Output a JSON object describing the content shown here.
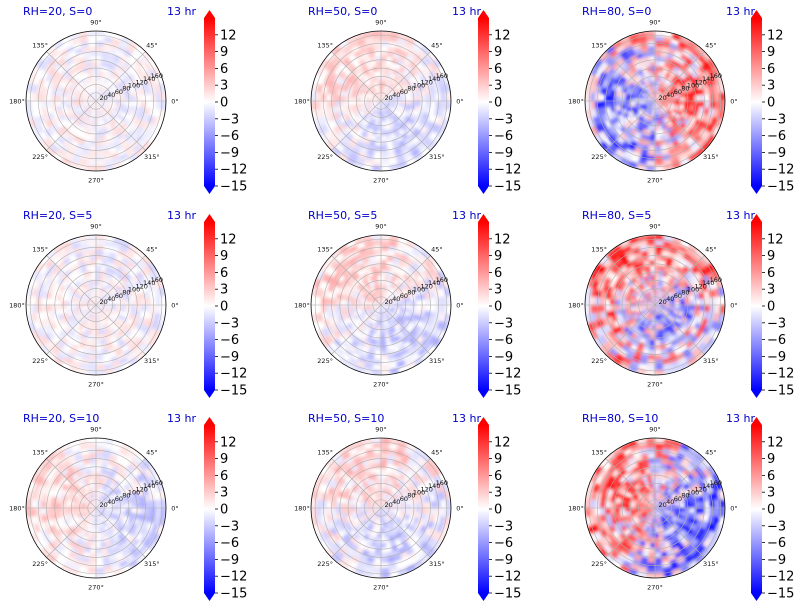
{
  "colors": {
    "negative": "#0000ff",
    "neutral": "#ffffff",
    "positive": "#ff0000",
    "title": "#0000cc",
    "grid": "#b0b0b0"
  },
  "chart_data": {
    "type": "heatmap",
    "layout": "3x3 grid of polar heatmaps, each with its own colorbar",
    "colormap": "bwr",
    "color_range": [
      -15,
      15
    ],
    "colorbar_ticks": [
      "12",
      "9",
      "6",
      "3",
      "0",
      "−3",
      "−6",
      "−9",
      "−12",
      "−15"
    ],
    "angle_tick_labels": [
      "0°",
      "45°",
      "90°",
      "135°",
      "180°",
      "225°",
      "270°",
      "315°"
    ],
    "radial_tick_labels": [
      "20",
      "40",
      "60",
      "80",
      "100",
      "120",
      "140",
      "160"
    ],
    "radial_label_angle_deg": 22.5,
    "radial_max": 170,
    "panels": [
      {
        "title": "RH=20, S=0",
        "time_label": "13 hr",
        "intensity": 0.2,
        "pattern": "mild-mixed"
      },
      {
        "title": "RH=50, S=0",
        "time_label": "13 hr",
        "intensity": 0.25,
        "pattern": "red-upper-left-blue-lower-right"
      },
      {
        "title": "RH=80, S=0",
        "time_label": "13 hr",
        "intensity": 0.85,
        "pattern": "strong-blue-upper-left-red-right"
      },
      {
        "title": "RH=20, S=5",
        "time_label": "13 hr",
        "intensity": 0.22,
        "pattern": "mild-mixed"
      },
      {
        "title": "RH=50, S=5",
        "time_label": "13 hr",
        "intensity": 0.28,
        "pattern": "red-upper-left-blue-lower-right"
      },
      {
        "title": "RH=80, S=5",
        "time_label": "13 hr",
        "intensity": 0.85,
        "pattern": "strong-red-ring-mixed"
      },
      {
        "title": "RH=20, S=10",
        "time_label": "13 hr",
        "intensity": 0.25,
        "pattern": "mild-red-left-blue-right"
      },
      {
        "title": "RH=50, S=10",
        "time_label": "13 hr",
        "intensity": 0.3,
        "pattern": "mild-red-upper-blue-lower-right"
      },
      {
        "title": "RH=80, S=10",
        "time_label": "13 hr",
        "intensity": 0.9,
        "pattern": "strong-red-left-blue-right"
      }
    ]
  }
}
